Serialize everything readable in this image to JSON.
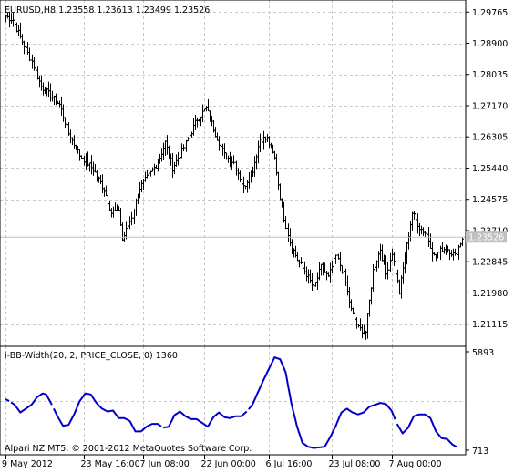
{
  "chart_data": [
    {
      "type": "ohlc",
      "symbol_line": "EURUSD,H8  1.23558 1.23613 1.23499 1.23526",
      "y_ticks": [
        1.29765,
        1.289,
        1.28035,
        1.2717,
        1.26305,
        1.2544,
        1.24575,
        1.2371,
        1.22845,
        1.2198,
        1.21115
      ],
      "y_tick_labels": [
        "1.29765",
        "1.28900",
        "1.28035",
        "1.27170",
        "1.26305",
        "1.25440",
        "1.24575",
        "1.23710",
        "1.22845",
        "1.21980",
        "1.21115"
      ],
      "ylim": [
        1.205,
        1.301
      ],
      "current_price": 1.23526,
      "current_price_label": "1.23526",
      "grid": true,
      "close_anchors": [
        [
          0,
          1.2965
        ],
        [
          4,
          1.2955
        ],
        [
          9,
          1.2895
        ],
        [
          14,
          1.284
        ],
        [
          19,
          1.277
        ],
        [
          24,
          1.2745
        ],
        [
          29,
          1.272
        ],
        [
          34,
          1.264
        ],
        [
          40,
          1.258
        ],
        [
          47,
          1.254
        ],
        [
          53,
          1.2485
        ],
        [
          57,
          1.242
        ],
        [
          61,
          1.243
        ],
        [
          63,
          1.2345
        ],
        [
          68,
          1.241
        ],
        [
          72,
          1.249
        ],
        [
          78,
          1.253
        ],
        [
          82,
          1.256
        ],
        [
          86,
          1.2615
        ],
        [
          90,
          1.2545
        ],
        [
          95,
          1.259
        ],
        [
          99,
          1.2635
        ],
        [
          103,
          1.268
        ],
        [
          108,
          1.271
        ],
        [
          113,
          1.264
        ],
        [
          118,
          1.258
        ],
        [
          123,
          1.256
        ],
        [
          128,
          1.249
        ],
        [
          133,
          1.254
        ],
        [
          137,
          1.2625
        ],
        [
          141,
          1.2625
        ],
        [
          145,
          1.257
        ],
        [
          149,
          1.243
        ],
        [
          153,
          1.234
        ],
        [
          157,
          1.229
        ],
        [
          162,
          1.225
        ],
        [
          166,
          1.221
        ],
        [
          170,
          1.227
        ],
        [
          174,
          1.224
        ],
        [
          178,
          1.23
        ],
        [
          182,
          1.225
        ],
        [
          186,
          1.215
        ],
        [
          190,
          1.21
        ],
        [
          194,
          1.209
        ],
        [
          198,
          1.226
        ],
        [
          202,
          1.232
        ],
        [
          205,
          1.225
        ],
        [
          208,
          1.231
        ],
        [
          212,
          1.22
        ],
        [
          216,
          1.233
        ],
        [
          219,
          1.242
        ],
        [
          223,
          1.238
        ],
        [
          227,
          1.236
        ],
        [
          231,
          1.23
        ],
        [
          235,
          1.232
        ],
        [
          238,
          1.232
        ],
        [
          242,
          1.23
        ],
        [
          246,
          1.235
        ]
      ]
    },
    {
      "type": "line",
      "title": "i-BB-Width(20, 2, PRICE_CLOSE, 0) 1360",
      "y_tick_labels": [
        "5893",
        "713"
      ],
      "ylim": [
        713,
        5893
      ],
      "color": "#0000c8",
      "series": [
        {
          "gaps": [
            [
              2,
              3
            ],
            [
              25,
              26
            ],
            [
              84,
              85
            ],
            [
              130,
              131
            ],
            [
              210,
              211
            ]
          ],
          "values_anchors": [
            [
              0,
              3400
            ],
            [
              2,
              3300
            ],
            [
              5,
              3100
            ],
            [
              8,
              2700
            ],
            [
              11,
              2900
            ],
            [
              14,
              3100
            ],
            [
              17,
              3500
            ],
            [
              20,
              3700
            ],
            [
              22,
              3650
            ],
            [
              25,
              3100
            ],
            [
              28,
              2500
            ],
            [
              31,
              2000
            ],
            [
              34,
              2050
            ],
            [
              37,
              2600
            ],
            [
              40,
              3300
            ],
            [
              43,
              3700
            ],
            [
              46,
              3650
            ],
            [
              49,
              3200
            ],
            [
              52,
              2900
            ],
            [
              55,
              2750
            ],
            [
              58,
              2800
            ],
            [
              61,
              2400
            ],
            [
              64,
              2400
            ],
            [
              67,
              2250
            ],
            [
              70,
              1700
            ],
            [
              73,
              1700
            ],
            [
              76,
              1950
            ],
            [
              79,
              2100
            ],
            [
              82,
              2100
            ],
            [
              85,
              1900
            ],
            [
              88,
              1950
            ],
            [
              91,
              2550
            ],
            [
              94,
              2750
            ],
            [
              97,
              2500
            ],
            [
              100,
              2350
            ],
            [
              103,
              2350
            ],
            [
              106,
              2150
            ],
            [
              109,
              1950
            ],
            [
              112,
              2450
            ],
            [
              115,
              2700
            ],
            [
              118,
              2450
            ],
            [
              121,
              2400
            ],
            [
              124,
              2500
            ],
            [
              127,
              2500
            ],
            [
              130,
              2750
            ],
            [
              133,
              3100
            ],
            [
              136,
              3750
            ],
            [
              139,
              4400
            ],
            [
              142,
              5000
            ],
            [
              145,
              5600
            ],
            [
              148,
              5500
            ],
            [
              151,
              4800
            ],
            [
              154,
              3200
            ],
            [
              157,
              2000
            ],
            [
              160,
              1100
            ],
            [
              163,
              900
            ],
            [
              166,
              830
            ],
            [
              169,
              860
            ],
            [
              172,
              900
            ],
            [
              175,
              1400
            ],
            [
              178,
              2000
            ],
            [
              181,
              2700
            ],
            [
              184,
              2900
            ],
            [
              187,
              2700
            ],
            [
              190,
              2600
            ],
            [
              193,
              2700
            ],
            [
              196,
              3000
            ],
            [
              199,
              3100
            ],
            [
              202,
              3200
            ],
            [
              205,
              3150
            ],
            [
              208,
              2800
            ],
            [
              211,
              2100
            ],
            [
              214,
              1600
            ],
            [
              217,
              1900
            ],
            [
              220,
              2500
            ],
            [
              223,
              2600
            ],
            [
              226,
              2600
            ],
            [
              229,
              2400
            ],
            [
              232,
              1700
            ],
            [
              235,
              1350
            ],
            [
              238,
              1300
            ],
            [
              241,
              1000
            ],
            [
              243,
              900
            ]
          ]
        }
      ],
      "copyright": "Alpari NZ MT5, © 2001-2012 MetaQuotes Software Corp."
    }
  ],
  "x_axis": {
    "labels": [
      "9 May 2012",
      "23 May 16:00",
      "7 Jun 08:00",
      "22 Jun 00:00",
      "6 Jul 16:00",
      "23 Jul 08:00",
      "7 Aug 00:00"
    ],
    "label_bar_index": [
      0,
      42,
      74,
      107,
      142,
      176,
      208
    ],
    "bar_count": 247
  },
  "colors": {
    "ohlc": "#000000",
    "grid": "#c8c8c8",
    "current_line": "#c0c0c0",
    "current_label_bg": "#c0c0c0",
    "current_label_fg": "#ffffff",
    "indicator": "#0000c8",
    "frame": "#000000"
  }
}
